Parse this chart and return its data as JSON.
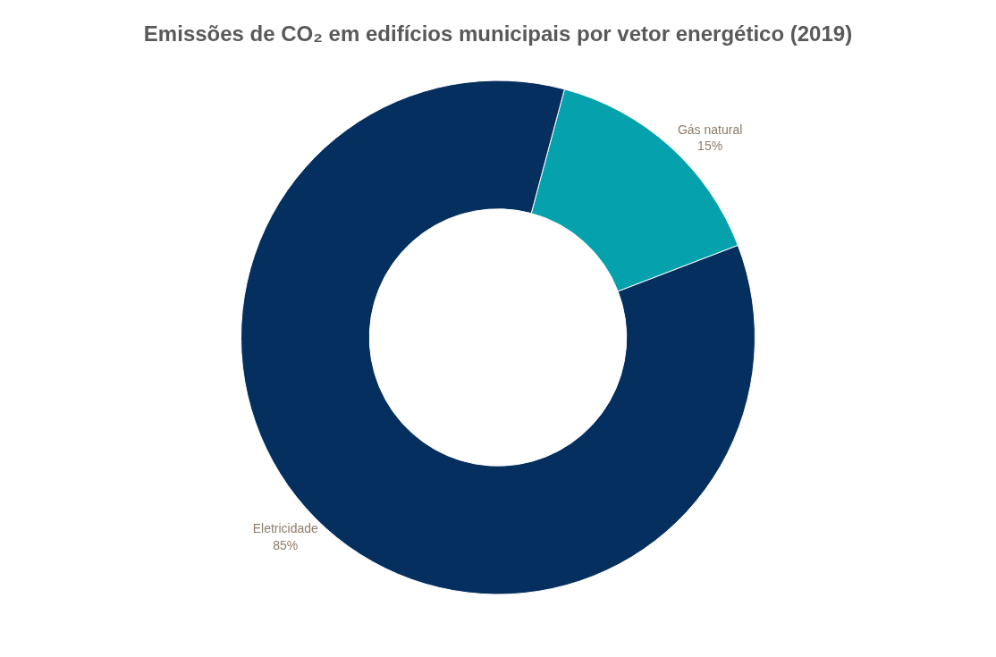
{
  "chart_data": {
    "type": "donut",
    "title": "Emissões de CO₂ em edifícios municipais por vetor energético (2019)",
    "categories": [
      "Gás natural",
      "Eletricidade"
    ],
    "values": [
      15,
      85
    ],
    "colors": [
      "#05a2ad",
      "#052f5f"
    ],
    "value_labels": [
      "15%",
      "85%"
    ],
    "legend": false
  }
}
